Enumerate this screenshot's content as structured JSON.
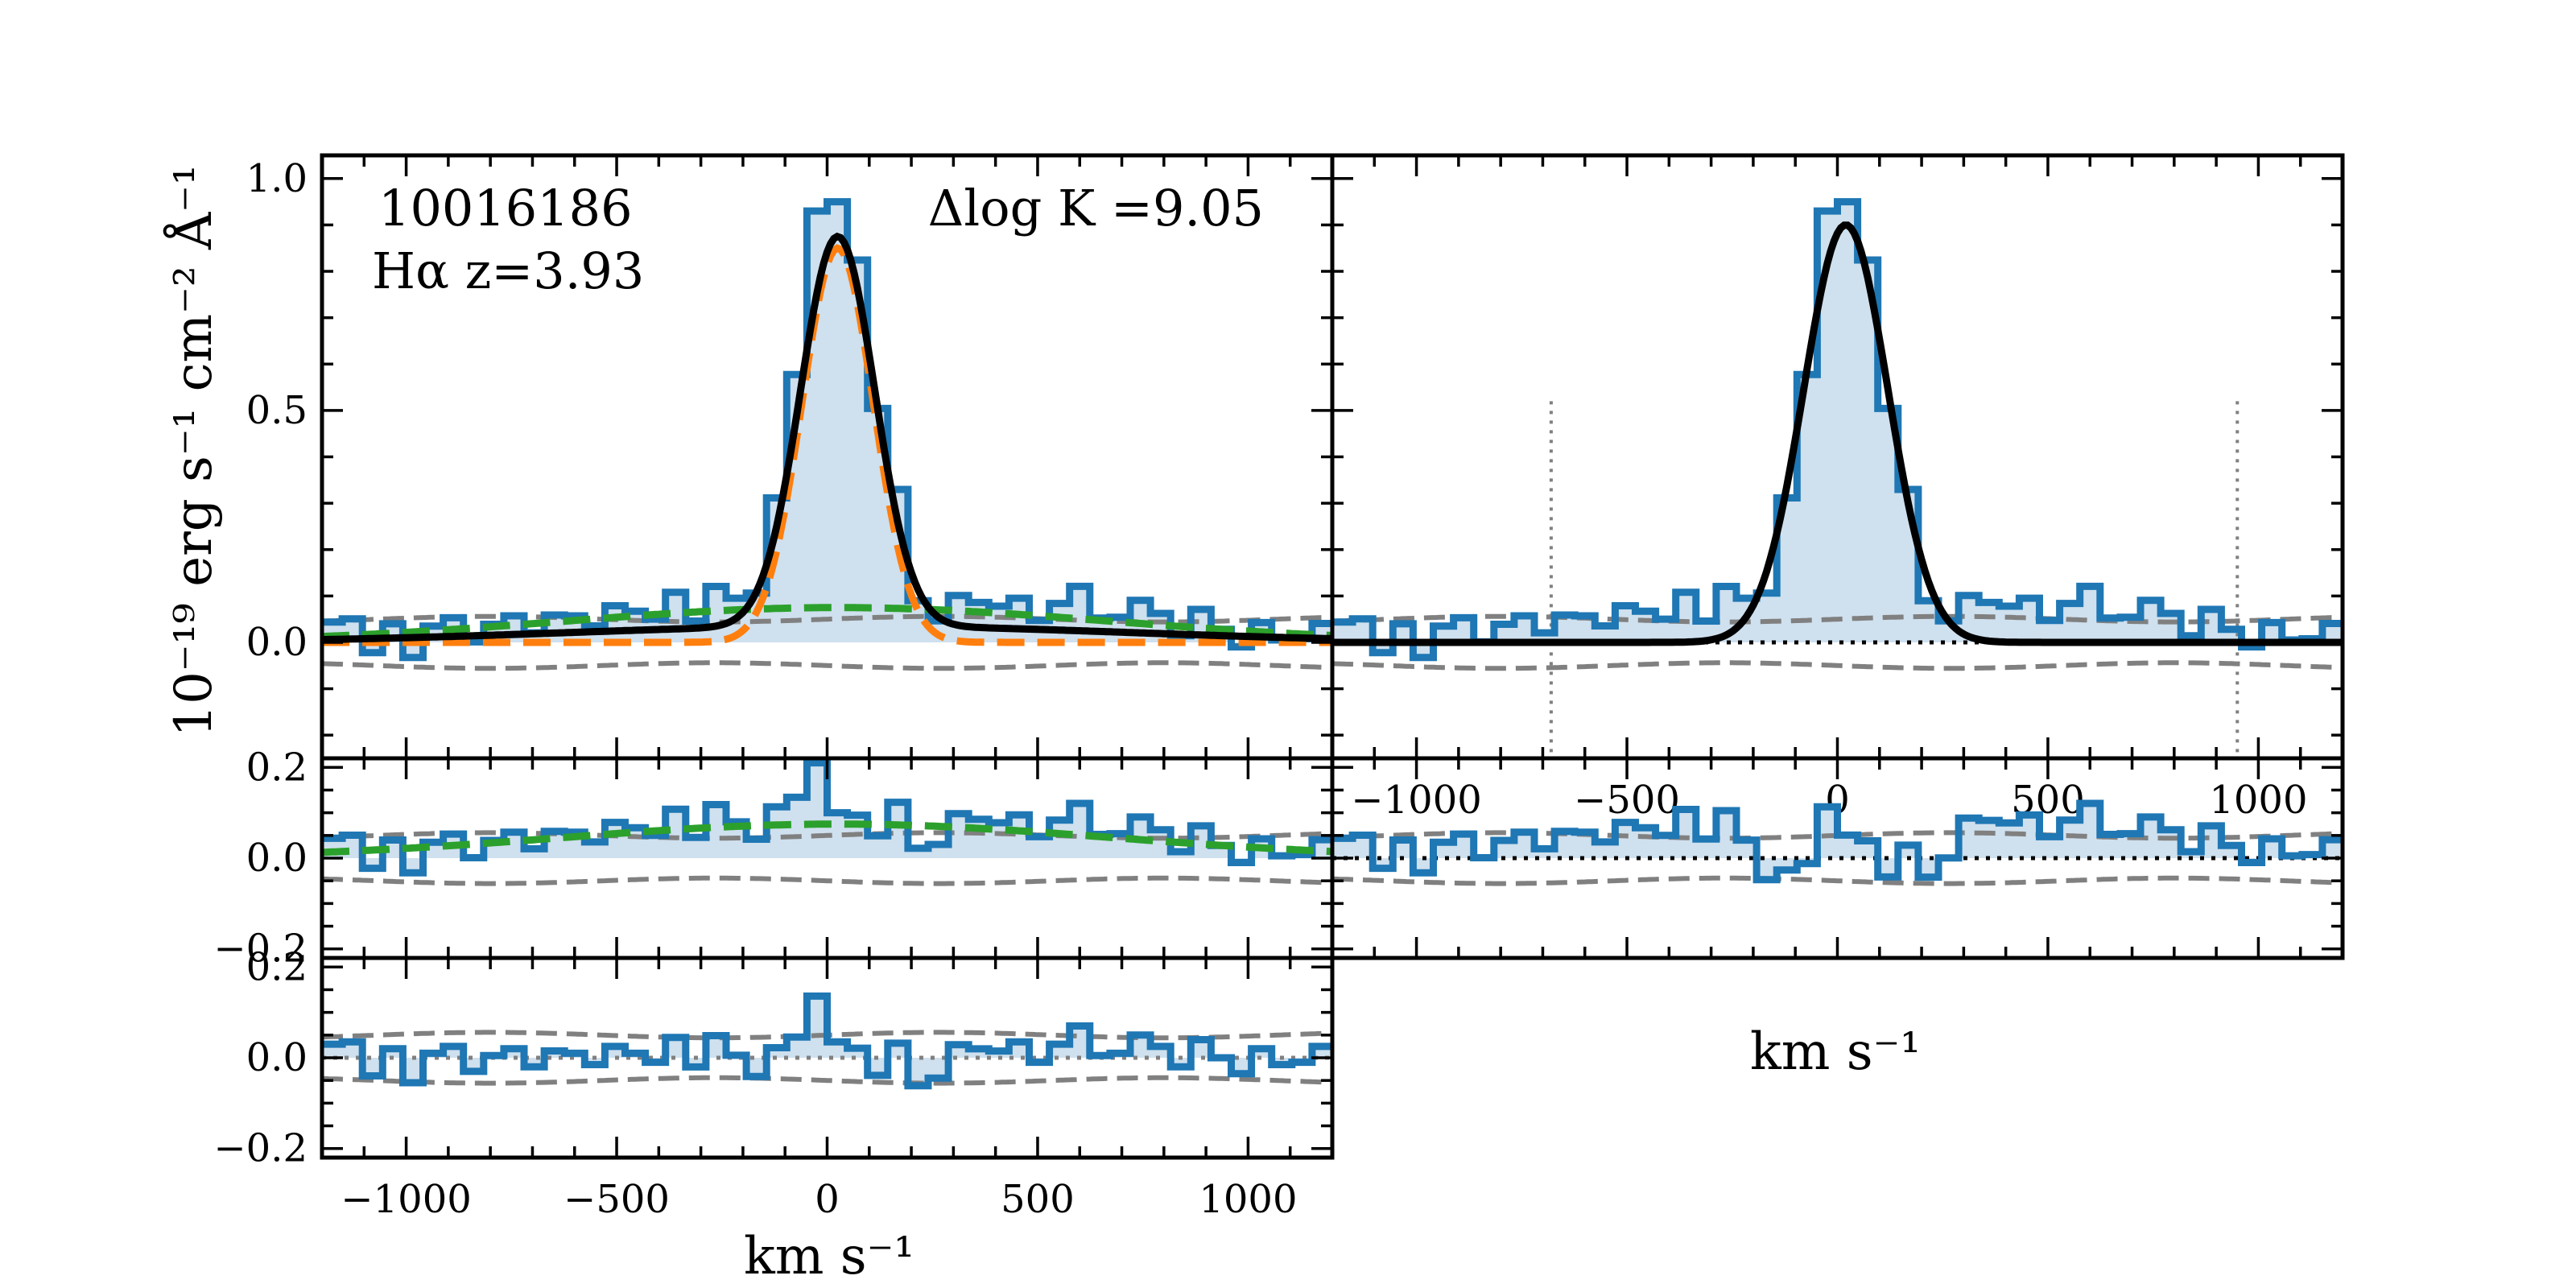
{
  "figure": {
    "object_id": "10016186",
    "line_label": "Hα z=3.93",
    "delta_logk_label": "Δlog K =9.05",
    "ylabel": "10⁻¹⁹ erg s⁻¹ cm⁻² Å⁻¹",
    "xlabel_left": "km s⁻¹",
    "xlabel_right": "km s⁻¹"
  },
  "colors": {
    "data": "#1f77b4",
    "fill": "#cfe0ee",
    "model": "#000000",
    "narrow": "#ff7f0e",
    "broad": "#2ca02c",
    "noise": "#808080"
  },
  "chart_data": [
    {
      "id": "left-main",
      "type": "line",
      "xlim": [
        -1200,
        1200
      ],
      "ylim": [
        -0.25,
        1.05
      ],
      "yticks": [
        0.0,
        0.5,
        1.0
      ],
      "ytick_labels": [
        "0.0",
        "0.5",
        "1.0"
      ],
      "series": [
        {
          "name": "data",
          "style": "step"
        },
        {
          "name": "total model",
          "style": "solid",
          "color": "model"
        },
        {
          "name": "narrow component",
          "style": "dashed",
          "color": "narrow"
        },
        {
          "name": "broad component",
          "style": "dashed",
          "color": "broad"
        },
        {
          "name": "noise ±1σ",
          "style": "dashed",
          "color": "noise"
        }
      ]
    },
    {
      "id": "right-main",
      "type": "line",
      "xlim": [
        -1200,
        1200
      ],
      "ylim": [
        -0.25,
        1.05
      ],
      "xticks": [
        -1000,
        -500,
        0,
        500,
        1000
      ],
      "xtick_labels": [
        "−1000",
        "−500",
        "0",
        "500",
        "1000"
      ],
      "window_lines": [
        -680,
        950
      ],
      "series": [
        {
          "name": "data",
          "style": "step"
        },
        {
          "name": "single gaussian model",
          "style": "solid",
          "color": "model"
        },
        {
          "name": "noise ±1σ",
          "style": "dashed",
          "color": "noise"
        },
        {
          "name": "zero level",
          "style": "dotted",
          "color": "model"
        }
      ]
    },
    {
      "id": "left-mid",
      "type": "line",
      "xlim": [
        -1200,
        1200
      ],
      "ylim": [
        -0.22,
        0.22
      ],
      "yticks": [
        -0.2,
        0.0,
        0.2
      ],
      "ytick_labels": [
        "−0.2",
        "0.0",
        "0.2"
      ],
      "series": [
        {
          "name": "residual (data − narrow)",
          "style": "step"
        },
        {
          "name": "broad component",
          "style": "dashed",
          "color": "broad"
        },
        {
          "name": "noise ±1σ",
          "style": "dashed",
          "color": "noise"
        }
      ]
    },
    {
      "id": "right-mid",
      "type": "line",
      "xlim": [
        -1200,
        1200
      ],
      "ylim": [
        -0.22,
        0.22
      ],
      "series": [
        {
          "name": "residual",
          "style": "step"
        },
        {
          "name": "noise ±1σ",
          "style": "dashed",
          "color": "noise"
        },
        {
          "name": "zero level",
          "style": "dotted",
          "color": "model"
        }
      ]
    },
    {
      "id": "left-bottom",
      "type": "line",
      "xlim": [
        -1200,
        1200
      ],
      "ylim": [
        -0.22,
        0.22
      ],
      "yticks": [
        -0.2,
        0.0,
        0.2
      ],
      "ytick_labels": [
        "−0.2",
        "0.0",
        "0.2"
      ],
      "xticks": [
        -1000,
        -500,
        0,
        500,
        1000
      ],
      "xtick_labels": [
        "−1000",
        "−500",
        "0",
        "500",
        "1000"
      ],
      "series": [
        {
          "name": "residual (data − total model)",
          "style": "step"
        },
        {
          "name": "noise ±1σ",
          "style": "dashed",
          "color": "noise"
        },
        {
          "name": "zero level",
          "style": "dotted",
          "color": "noise"
        }
      ]
    }
  ]
}
